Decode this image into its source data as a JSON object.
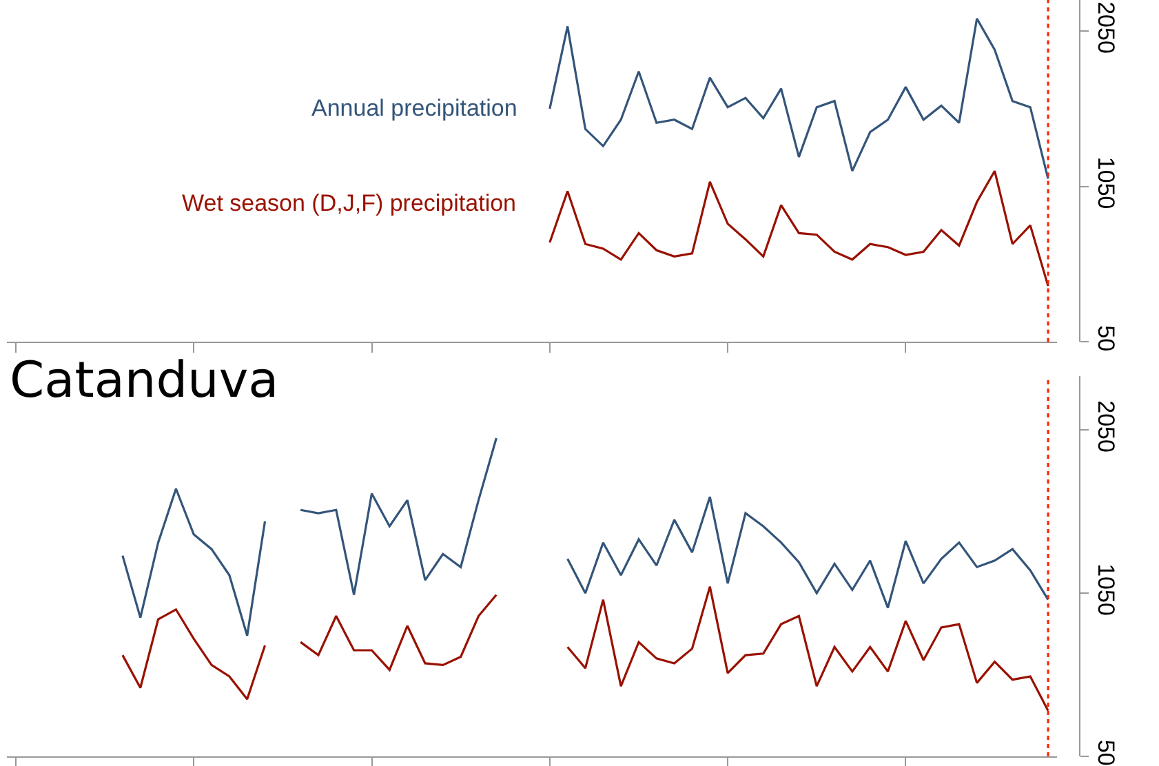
{
  "chart_data": [
    {
      "type": "line",
      "categories": [
        null,
        null,
        null,
        null,
        null,
        null,
        null,
        null,
        null,
        null,
        null,
        null,
        null,
        null,
        null,
        null,
        null,
        null,
        null,
        null,
        null,
        null,
        null,
        null,
        null,
        null,
        null,
        null,
        null,
        null,
        null,
        null,
        null,
        null,
        null,
        null,
        null,
        null,
        null,
        null,
        null,
        null,
        null,
        null,
        null,
        null,
        null,
        null,
        null,
        null,
        null,
        null,
        null,
        null,
        null,
        null,
        null,
        null,
        null
      ],
      "series": [
        {
          "name": "Annual precipitation",
          "color": "#34557a",
          "values": [
            null,
            null,
            null,
            null,
            null,
            null,
            null,
            null,
            null,
            null,
            null,
            null,
            null,
            null,
            null,
            null,
            null,
            null,
            null,
            null,
            null,
            null,
            null,
            null,
            null,
            null,
            null,
            null,
            null,
            null,
            1550,
            2080,
            1420,
            1310,
            1480,
            1790,
            1460,
            1480,
            1420,
            1750,
            1560,
            1620,
            1490,
            1680,
            1240,
            1560,
            1600,
            1150,
            1400,
            1480,
            1690,
            1480,
            1570,
            1460,
            2130,
            1930,
            1600,
            1560,
            1100
          ]
        },
        {
          "name": "Wet season (D,J,F) precipitation",
          "color": "#991100",
          "values": [
            null,
            null,
            null,
            null,
            null,
            null,
            null,
            null,
            null,
            null,
            null,
            null,
            null,
            null,
            null,
            null,
            null,
            null,
            null,
            null,
            null,
            null,
            null,
            null,
            null,
            null,
            null,
            null,
            null,
            null,
            690,
            1020,
            680,
            650,
            580,
            750,
            640,
            600,
            620,
            1080,
            810,
            710,
            600,
            930,
            750,
            740,
            630,
            580,
            680,
            660,
            610,
            630,
            770,
            670,
            950,
            1150,
            680,
            800,
            410
          ]
        }
      ],
      "ylim": [
        50,
        2250
      ],
      "yticks": [
        50,
        1050,
        2050
      ],
      "tick_labels": "y",
      "legend": false,
      "marker": "none",
      "line_style": "solid"
    },
    {
      "type": "line",
      "title": "Catanduva",
      "categories": [
        null,
        null,
        null,
        null,
        null,
        null,
        null,
        null,
        null,
        null,
        null,
        null,
        null,
        null,
        null,
        null,
        null,
        null,
        null,
        null,
        null,
        null,
        null,
        null,
        null,
        null,
        null,
        null,
        null,
        null,
        null,
        null,
        null,
        null,
        null,
        null,
        null,
        null,
        null,
        null,
        null,
        null,
        null,
        null,
        null,
        null,
        null,
        null,
        null,
        null,
        null,
        null,
        null,
        null,
        null,
        null,
        null,
        null,
        null
      ],
      "series": [
        {
          "color": "#34557a",
          "values": [
            null,
            null,
            null,
            null,
            null,
            null,
            1280,
            900,
            1360,
            1690,
            1410,
            1320,
            1160,
            790,
            1490,
            null,
            1560,
            1540,
            1560,
            1040,
            1660,
            1460,
            1620,
            1130,
            1290,
            1210,
            1620,
            2000,
            null,
            null,
            null,
            1260,
            1050,
            1360,
            1160,
            1380,
            1220,
            1500,
            1300,
            1640,
            1110,
            1540,
            1460,
            1360,
            1240,
            1050,
            1230,
            1070,
            1250,
            960,
            1370,
            1110,
            1260,
            1360,
            1210,
            1250,
            1320,
            1190,
            1010
          ]
        },
        {
          "color": "#991100",
          "values": [
            null,
            null,
            null,
            null,
            null,
            null,
            670,
            470,
            890,
            950,
            770,
            610,
            540,
            400,
            730,
            null,
            750,
            670,
            910,
            700,
            700,
            580,
            850,
            620,
            610,
            660,
            910,
            1040,
            null,
            null,
            null,
            720,
            590,
            1010,
            480,
            750,
            650,
            620,
            710,
            1090,
            560,
            670,
            680,
            860,
            910,
            480,
            720,
            570,
            720,
            570,
            880,
            640,
            840,
            860,
            500,
            630,
            520,
            540,
            330
          ]
        }
      ],
      "ylim": [
        50,
        2380
      ],
      "yticks": [
        50,
        1050,
        2050
      ],
      "tick_labels": "y",
      "legend": false,
      "marker": "none",
      "line_style": "solid"
    }
  ]
}
